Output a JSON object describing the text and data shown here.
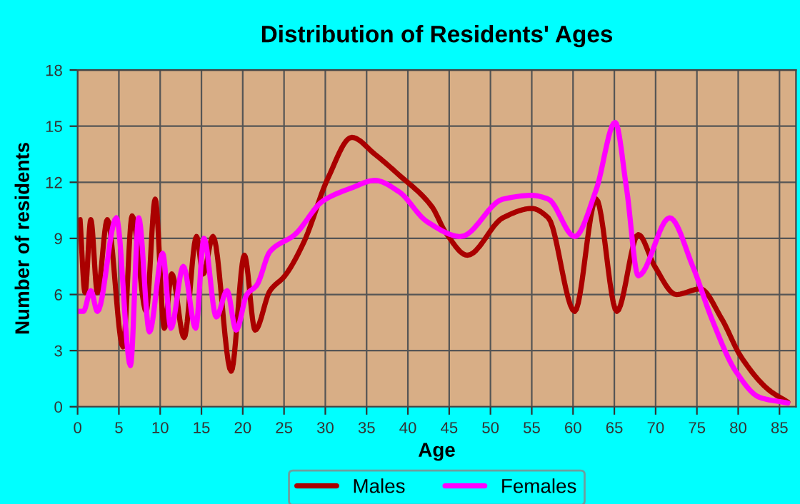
{
  "chart_data": {
    "type": "line",
    "title": "Distribution of Residents' Ages",
    "xlabel": "Age",
    "ylabel": "Number of residents",
    "xlim": [
      0,
      87
    ],
    "xticks": [
      0,
      5,
      10,
      15,
      20,
      25,
      30,
      35,
      40,
      45,
      50,
      55,
      60,
      65,
      70,
      75,
      80,
      85
    ],
    "ylim": [
      0,
      18
    ],
    "yticks": [
      0,
      3,
      6,
      9,
      12,
      15,
      18
    ],
    "grid": true,
    "legend": "bottom",
    "marker": "none",
    "line_style": "solid",
    "series": [
      {
        "name": "Males",
        "color": "#aa0000",
        "x": [
          0.3,
          0.9,
          1.6,
          2.4,
          3.6,
          5.5,
          6.6,
          8.3,
          9.4,
          10.5,
          11.4,
          12.9,
          14.4,
          15.2,
          16.4,
          18.6,
          20.2,
          21.5,
          23.3,
          25.1,
          27.4,
          30.3,
          33.2,
          36,
          38.9,
          42.9,
          44.6,
          47.2,
          51.5,
          55,
          57,
          60.2,
          62.8,
          65.3,
          67.9,
          69.9,
          72.5,
          75.4,
          78,
          80.3,
          83.7,
          86
        ],
        "values": [
          10.0,
          6.1,
          10.0,
          6.1,
          10.0,
          3.2,
          10.2,
          5.1,
          11.1,
          4.2,
          7.1,
          3.7,
          9.1,
          7.1,
          9.1,
          1.9,
          8.1,
          4.1,
          6.2,
          7.0,
          8.8,
          12.2,
          14.4,
          13.5,
          12.4,
          10.7,
          9.3,
          8.1,
          10.1,
          10.6,
          10.1,
          5.1,
          11.1,
          5.1,
          9.2,
          7.5,
          6.0,
          6.3,
          4.7,
          2.7,
          0.9,
          0.25
        ]
      },
      {
        "name": "Females",
        "color": "#ff00ff",
        "x": [
          0.1,
          0.7,
          1.6,
          2.4,
          4.7,
          6.4,
          7.4,
          8.7,
          10.3,
          11.3,
          12.8,
          14.3,
          15.3,
          16.8,
          18.1,
          19.2,
          20.5,
          21.7,
          23.3,
          26.3,
          29.7,
          33.2,
          36,
          38.9,
          42.3,
          46.4,
          51.5,
          55,
          57,
          60.2,
          62.8,
          65.1,
          66.5,
          67.9,
          71.7,
          74.5,
          76.8,
          79.7,
          82.6,
          86
        ],
        "values": [
          5.1,
          5.1,
          6.2,
          5.1,
          10.1,
          2.2,
          10.1,
          4.0,
          8.2,
          4.2,
          7.5,
          4.2,
          9.0,
          4.8,
          6.2,
          4.1,
          6.0,
          6.5,
          8.3,
          9.2,
          11.0,
          11.7,
          12.1,
          11.5,
          9.9,
          9.1,
          11.1,
          11.3,
          11.1,
          9.1,
          11.6,
          15.2,
          11.6,
          7.0,
          10.1,
          7.5,
          4.7,
          1.9,
          0.5,
          0.2
        ]
      }
    ]
  }
}
